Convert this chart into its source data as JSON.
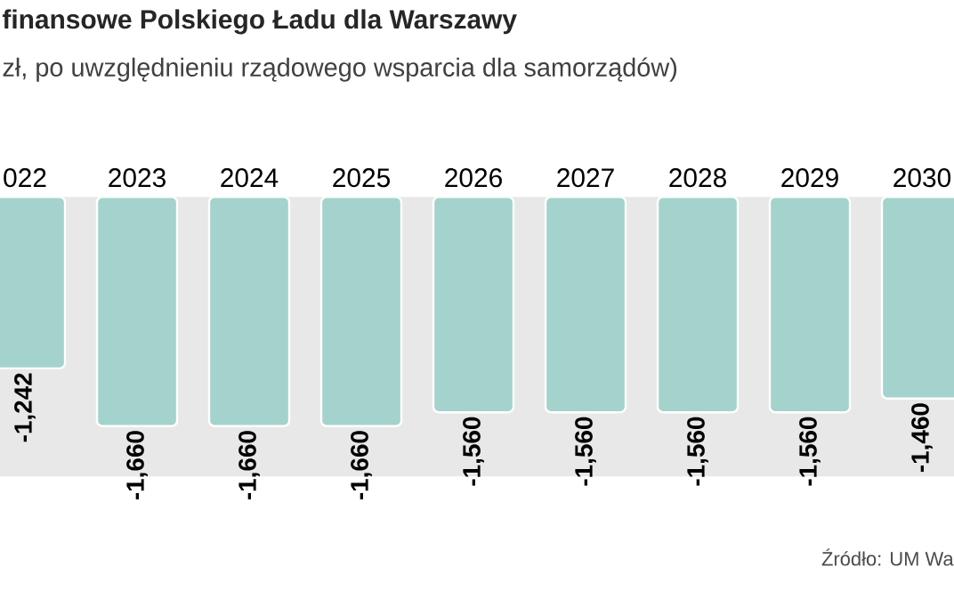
{
  "chart_data": {
    "type": "bar",
    "title": "finansowe Polskiego Ładu dla Warszawy",
    "subtitle": "zł, po uwzględnieniu rządowego wsparcia dla samorządów)",
    "categories": [
      "022",
      "2023",
      "2024",
      "2025",
      "2026",
      "2027",
      "2028",
      "2029",
      "2030"
    ],
    "values": [
      -1242,
      -1660,
      -1660,
      -1660,
      -1560,
      -1560,
      -1560,
      -1560,
      -1460
    ],
    "value_labels": [
      "-1,242",
      "-1,660",
      "-1,660",
      "-1,660",
      "-1,560",
      "-1,560",
      "-1,560",
      "-1,560",
      "-1,460"
    ],
    "color": "#a3d3cc",
    "annotations": [
      "Źródło: UM Wa"
    ]
  }
}
